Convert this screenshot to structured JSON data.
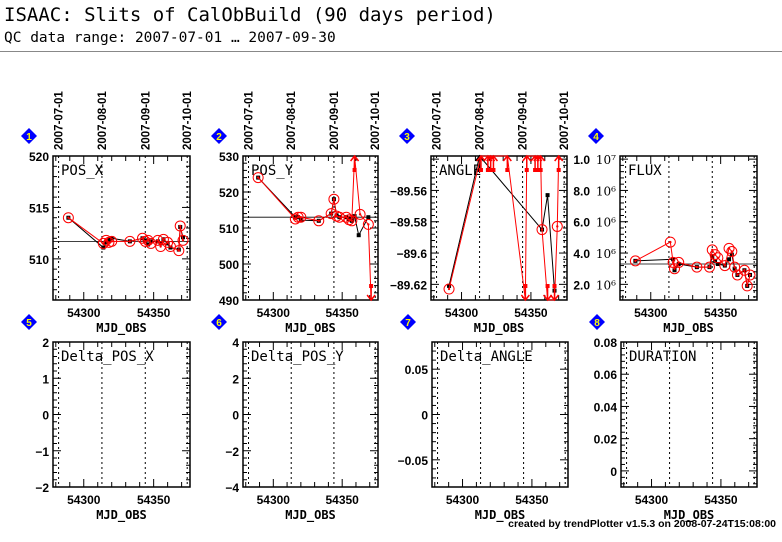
{
  "header": {
    "title": "ISAAC: Slits of CalObBuild (90 days period)",
    "subtitle": "QC data range: 2007-07-01 … 2007-09-30"
  },
  "footer": "created by trendPlotter v1.5.3 on 2008-07-24T15:08:00",
  "colors": {
    "black_series": "#000000",
    "red_series": "#ff0000",
    "marker": "#0000ff",
    "marker_text": "#ffff00"
  },
  "chart_data": {
    "type": "scatter",
    "xlabel": "MJD_OBS",
    "xlim": [
      54278,
      54376
    ],
    "xticks": [
      54300,
      54350
    ],
    "date_labels": [
      {
        "label": "2007-07-01",
        "mjd": 54282
      },
      {
        "label": "2007-08-01",
        "mjd": 54313
      },
      {
        "label": "2007-09-01",
        "mjd": 54344
      },
      {
        "label": "2007-10-01",
        "mjd": 54374
      }
    ],
    "panels": [
      {
        "id": "1",
        "title": "POS_X",
        "ylim": [
          506,
          520
        ],
        "yticks": [
          {
            "v": 510,
            "l": "510"
          },
          {
            "v": 515,
            "l": "515"
          },
          {
            "v": 520,
            "l": "520"
          }
        ],
        "median": 511.7,
        "black": [
          [
            54289,
            514
          ],
          [
            54314,
            511.1
          ],
          [
            54316,
            511.6
          ],
          [
            54318,
            511.9
          ],
          [
            54320,
            512
          ],
          [
            54333,
            511.7
          ],
          [
            54342,
            512
          ],
          [
            54344,
            511.8
          ],
          [
            54346,
            511.4
          ],
          [
            54348,
            511.7
          ],
          [
            54353,
            511.7
          ],
          [
            54355,
            511.5
          ],
          [
            54357,
            511.9
          ],
          [
            54360,
            511.5
          ],
          [
            54362,
            511.1
          ],
          [
            54368,
            510.9
          ],
          [
            54369,
            513.1
          ],
          [
            54371,
            512.1
          ]
        ],
        "red": [
          [
            54289,
            514
          ],
          [
            54314,
            511.5
          ],
          [
            54316,
            511.8
          ],
          [
            54318,
            511.6
          ],
          [
            54320,
            511.7
          ],
          [
            54333,
            511.7
          ],
          [
            54342,
            512
          ],
          [
            54344,
            511.7
          ],
          [
            54346,
            511.8
          ],
          [
            54348,
            511.5
          ],
          [
            54353,
            511.8
          ],
          [
            54355,
            511.2
          ],
          [
            54357,
            511.9
          ],
          [
            54360,
            511.6
          ],
          [
            54362,
            511.2
          ],
          [
            54368,
            510.8
          ],
          [
            54369,
            513.2
          ],
          [
            54371,
            511.8
          ]
        ]
      },
      {
        "id": "2",
        "title": "POS_Y",
        "ylim": [
          490,
          530
        ],
        "yticks": [
          {
            "v": 490,
            "l": "490"
          },
          {
            "v": 500,
            "l": "500"
          },
          {
            "v": 510,
            "l": "510"
          },
          {
            "v": 520,
            "l": "520"
          },
          {
            "v": 530,
            "l": "530"
          }
        ],
        "median": 513,
        "black": [
          [
            54289,
            524
          ],
          [
            54316,
            513
          ],
          [
            54318,
            513
          ],
          [
            54320,
            512.2
          ],
          [
            54333,
            512
          ],
          [
            54342,
            514
          ],
          [
            54344,
            518
          ],
          [
            54346,
            513.5
          ],
          [
            54348,
            513
          ],
          [
            54353,
            513
          ],
          [
            54355,
            512.5
          ],
          [
            54357,
            512
          ],
          [
            54359,
            513.3
          ],
          [
            54362,
            508
          ],
          [
            54369,
            513
          ]
        ],
        "red": [
          [
            54289,
            524
          ],
          [
            54316,
            512.5
          ],
          [
            54318,
            513
          ],
          [
            54320,
            513
          ],
          [
            54333,
            512
          ],
          [
            54342,
            514
          ],
          [
            54344,
            518
          ],
          [
            54346,
            513.3
          ],
          [
            54348,
            513
          ],
          [
            54353,
            513
          ],
          [
            54355,
            512.3
          ],
          [
            54357,
            512
          ],
          [
            54359,
            "above"
          ],
          [
            54363,
            513.8
          ],
          [
            54369,
            511
          ],
          [
            54371,
            "below"
          ]
        ]
      },
      {
        "id": "3",
        "title": "ANGLE",
        "ylim": [
          -89.63,
          -89.538
        ],
        "yticks": [
          {
            "v": -89.62,
            "l": "−89.62"
          },
          {
            "v": -89.6,
            "l": "−89.6"
          },
          {
            "v": -89.58,
            "l": "−89.58"
          },
          {
            "v": -89.56,
            "l": "−89.56"
          }
        ],
        "median": null,
        "black": [
          [
            54291,
            -89.621
          ],
          [
            54313,
            "above"
          ],
          [
            54358,
            -89.585
          ],
          [
            54362,
            -89.563
          ],
          [
            54367,
            -89.624
          ]
        ],
        "red": [
          [
            54291,
            -89.623
          ],
          [
            54314,
            "above"
          ],
          [
            54319,
            "above"
          ],
          [
            54321,
            "above"
          ],
          [
            54323,
            "above"
          ],
          [
            54333,
            "above"
          ],
          [
            54346,
            "below"
          ],
          [
            54347,
            "above"
          ],
          [
            54353,
            "above"
          ],
          [
            54355,
            "above"
          ],
          [
            54357,
            "above"
          ],
          [
            54358,
            -89.585
          ],
          [
            54362,
            "below"
          ],
          [
            54367,
            "below"
          ],
          [
            54369,
            -89.583
          ],
          [
            54370,
            "above"
          ]
        ]
      },
      {
        "id": "4",
        "title": "FLUX",
        "ylim": [
          1000000,
          10200000
        ],
        "yticks": [
          {
            "v": 2000000,
            "l": "2.0",
            "e": "10⁶"
          },
          {
            "v": 4000000,
            "l": "4.0",
            "e": "10⁶"
          },
          {
            "v": 6000000,
            "l": "6.0",
            "e": "10⁶"
          },
          {
            "v": 8000000,
            "l": "8.0",
            "e": "10⁶"
          },
          {
            "v": 10000000,
            "l": "1.0",
            "e": "10⁷"
          }
        ],
        "median": 3300000,
        "black": [
          [
            54289,
            3500000
          ],
          [
            54316,
            3600000
          ],
          [
            54317,
            2900000
          ],
          [
            54320,
            3300000
          ],
          [
            54333,
            3100000
          ],
          [
            54342,
            3100000
          ],
          [
            54344,
            3800000
          ],
          [
            54346,
            3500000
          ],
          [
            54348,
            3300000
          ],
          [
            54353,
            3200000
          ],
          [
            54356,
            3600000
          ],
          [
            54358,
            3900000
          ],
          [
            54360,
            3000000
          ],
          [
            54362,
            2600000
          ],
          [
            54367,
            2900000
          ],
          [
            54369,
            1900000
          ],
          [
            54371,
            2600000
          ]
        ],
        "red": [
          [
            54289,
            3500000
          ],
          [
            54314,
            4700000
          ],
          [
            54316,
            3400000
          ],
          [
            54317,
            3000000
          ],
          [
            54320,
            3400000
          ],
          [
            54333,
            3100000
          ],
          [
            54342,
            3100000
          ],
          [
            54344,
            4200000
          ],
          [
            54346,
            3900000
          ],
          [
            54348,
            3700000
          ],
          [
            54353,
            3200000
          ],
          [
            54356,
            4300000
          ],
          [
            54358,
            4100000
          ],
          [
            54360,
            3100000
          ],
          [
            54362,
            2600000
          ],
          [
            54367,
            2900000
          ],
          [
            54369,
            1900000
          ],
          [
            54371,
            2600000
          ]
        ]
      },
      {
        "id": "5",
        "title": "Delta_POS_X",
        "ylim": [
          -2,
          2
        ],
        "yticks": [
          {
            "v": -2,
            "l": "−2"
          },
          {
            "v": -1,
            "l": "−1"
          },
          {
            "v": 0,
            "l": "0"
          },
          {
            "v": 1,
            "l": "1"
          },
          {
            "v": 2,
            "l": "2"
          }
        ],
        "median": null,
        "black": [],
        "red": []
      },
      {
        "id": "6",
        "title": "Delta_POS_Y",
        "ylim": [
          -4,
          4
        ],
        "yticks": [
          {
            "v": -4,
            "l": "−4"
          },
          {
            "v": -2,
            "l": "−2"
          },
          {
            "v": 0,
            "l": "0"
          },
          {
            "v": 2,
            "l": "2"
          },
          {
            "v": 4,
            "l": "4"
          }
        ],
        "median": null,
        "black": [],
        "red": []
      },
      {
        "id": "7",
        "title": "Delta_ANGLE",
        "ylim": [
          -0.08,
          0.08
        ],
        "yticks": [
          {
            "v": -0.05,
            "l": "−0.05"
          },
          {
            "v": 0,
            "l": "0"
          },
          {
            "v": 0.05,
            "l": "0.05"
          }
        ],
        "median": null,
        "black": [],
        "red": []
      },
      {
        "id": "8",
        "title": "DURATION",
        "ylim": [
          -0.01,
          0.08
        ],
        "yticks": [
          {
            "v": 0,
            "l": "0"
          },
          {
            "v": 0.02,
            "l": "0.02"
          },
          {
            "v": 0.04,
            "l": "0.04"
          },
          {
            "v": 0.06,
            "l": "0.06"
          },
          {
            "v": 0.08,
            "l": "0.08"
          }
        ],
        "median": null,
        "black": [],
        "red": []
      }
    ]
  }
}
